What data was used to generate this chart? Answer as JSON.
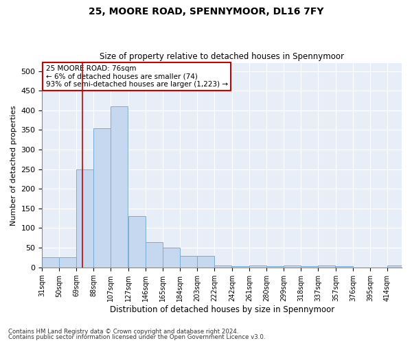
{
  "title1": "25, MOORE ROAD, SPENNYMOOR, DL16 7FY",
  "title2": "Size of property relative to detached houses in Spennymoor",
  "xlabel": "Distribution of detached houses by size in Spennymoor",
  "ylabel": "Number of detached properties",
  "bar_color": "#c5d8ef",
  "bar_edge_color": "#7aadd4",
  "property_line_x": 76,
  "categories": [
    "31sqm",
    "50sqm",
    "69sqm",
    "88sqm",
    "107sqm",
    "127sqm",
    "146sqm",
    "165sqm",
    "184sqm",
    "203sqm",
    "222sqm",
    "242sqm",
    "261sqm",
    "280sqm",
    "299sqm",
    "318sqm",
    "337sqm",
    "357sqm",
    "376sqm",
    "395sqm",
    "414sqm"
  ],
  "bin_left": [
    31,
    50,
    69,
    88,
    107,
    127,
    146,
    165,
    184,
    203,
    222,
    242,
    261,
    280,
    299,
    318,
    337,
    357,
    376,
    395,
    414
  ],
  "bin_width": 19,
  "bar_heights": [
    25,
    25,
    250,
    355,
    410,
    130,
    65,
    50,
    30,
    30,
    5,
    3,
    5,
    3,
    5,
    3,
    5,
    3,
    0,
    0,
    5
  ],
  "ylim": [
    0,
    520
  ],
  "yticks": [
    0,
    50,
    100,
    150,
    200,
    250,
    300,
    350,
    400,
    450,
    500
  ],
  "annotation_text": "25 MOORE ROAD: 76sqm\n← 6% of detached houses are smaller (74)\n93% of semi-detached houses are larger (1,223) →",
  "annotation_box_color": "#ffffff",
  "annotation_box_edge": "#cc0000",
  "footer1": "Contains HM Land Registry data © Crown copyright and database right 2024.",
  "footer2": "Contains public sector information licensed under the Open Government Licence v3.0.",
  "plot_bg_color": "#e8eef7"
}
